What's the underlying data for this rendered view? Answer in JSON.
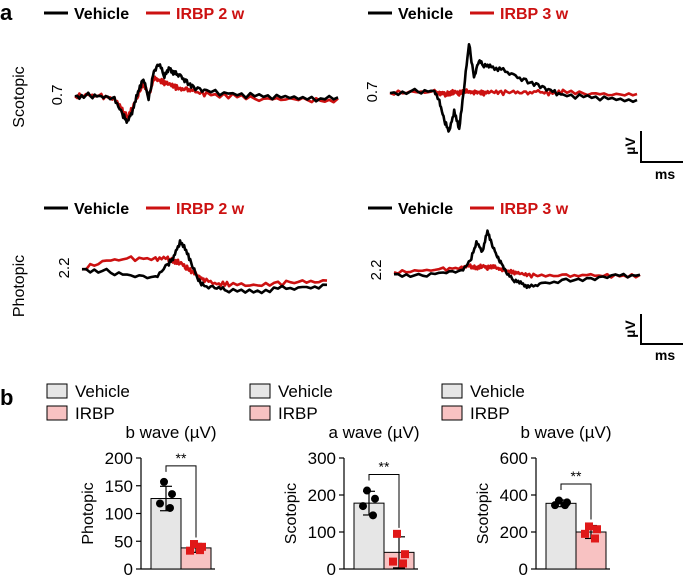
{
  "panel_a": {
    "label": "a",
    "row_labels": [
      "Scotopic",
      "Photopic"
    ],
    "scale_bar": {
      "y_label": "µV",
      "x_label": "ms"
    },
    "scale_values": {
      "scotopic": "0.7",
      "photopic": "2.2"
    },
    "colors": {
      "vehicle": "#000000",
      "irbp": "#cc1111"
    }
  },
  "panel_b": {
    "label": "b",
    "legend": {
      "vehicle": "Vehicle",
      "irbp": "IRBP"
    },
    "significance": "**",
    "colors": {
      "vehicle_bar": "#e6e6e6",
      "irbp_bar": "#f8c2c2",
      "vehicle_dot": "#000000",
      "irbp_dot": "#e01818"
    }
  },
  "chart_data": [
    {
      "type": "line",
      "panel": "a",
      "condition": "Scotopic",
      "legend": [
        "Vehicle",
        "IRBP 2 w"
      ],
      "scale": "0.7",
      "x": [
        0,
        10,
        20,
        30,
        36,
        40,
        44,
        48,
        52,
        56,
        60,
        64,
        68,
        72,
        76,
        80,
        85,
        90,
        100,
        120,
        140,
        160,
        180,
        200
      ],
      "series": [
        {
          "name": "Vehicle",
          "values": [
            0,
            0.05,
            0,
            -0.1,
            -0.8,
            -1.1,
            -0.6,
            0.2,
            0.8,
            -0.1,
            1.1,
            1.4,
            0.9,
            1.2,
            1.0,
            0.9,
            0.6,
            0.4,
            0.2,
            0.1,
            0,
            -0.05,
            -0.1,
            -0.1
          ]
        },
        {
          "name": "IRBP 2 w",
          "values": [
            0,
            0.05,
            0,
            -0.1,
            -0.6,
            -0.9,
            -0.5,
            0.1,
            0.6,
            0,
            0.8,
            0.7,
            0.6,
            0.5,
            0.4,
            0.3,
            0.3,
            0.2,
            0.1,
            0,
            -0.1,
            -0.1,
            -0.15,
            -0.15
          ]
        }
      ]
    },
    {
      "type": "line",
      "panel": "a",
      "condition": "Scotopic",
      "legend": [
        "Vehicle",
        "IRBP 3 w"
      ],
      "scale": "0.7",
      "x": [
        0,
        20,
        36,
        40,
        44,
        48,
        52,
        56,
        60,
        64,
        68,
        72,
        76,
        82,
        90,
        100,
        110,
        120,
        130,
        140,
        160,
        180,
        200
      ],
      "series": [
        {
          "name": "Vehicle",
          "values": [
            0,
            0.1,
            0.1,
            -0.4,
            -1.4,
            -1.9,
            -0.9,
            -1.8,
            0.3,
            2.5,
            0.8,
            1.6,
            1.4,
            1.3,
            1.2,
            0.9,
            0.6,
            0.4,
            0.1,
            -0.1,
            -0.2,
            -0.3,
            -0.4
          ]
        },
        {
          "name": "IRBP 3 w",
          "values": [
            0,
            0.05,
            0.05,
            0,
            -0.05,
            0,
            0.05,
            0,
            0.1,
            0.1,
            0.05,
            0.05,
            0,
            0.05,
            0,
            0.05,
            0,
            0.05,
            0,
            0.05,
            0,
            -0.05,
            -0.1
          ]
        }
      ]
    },
    {
      "type": "line",
      "panel": "a",
      "condition": "Photopic",
      "legend": [
        "Vehicle",
        "IRBP 2 w"
      ],
      "scale": "2.2",
      "x": [
        0,
        20,
        40,
        60,
        70,
        75,
        80,
        85,
        90,
        95,
        100,
        110,
        120,
        140,
        160,
        180,
        200
      ],
      "series": [
        {
          "name": "Vehicle",
          "values": [
            0,
            -0.1,
            -0.3,
            -0.4,
            0.2,
            0.6,
            1.3,
            0.9,
            0.2,
            -0.5,
            -0.8,
            -0.9,
            -1.0,
            -1.1,
            -0.9,
            -0.9,
            -0.8
          ]
        },
        {
          "name": "IRBP 2 w",
          "values": [
            0,
            0.4,
            0.5,
            0.5,
            0.5,
            0.4,
            0.3,
            0.1,
            -0.1,
            -0.3,
            -0.5,
            -0.7,
            -0.7,
            -0.8,
            -0.7,
            -0.6,
            -0.6
          ]
        }
      ]
    },
    {
      "type": "line",
      "panel": "a",
      "condition": "Photopic",
      "legend": [
        "Vehicle",
        "IRBP 3 w"
      ],
      "scale": "2.2",
      "x": [
        0,
        20,
        40,
        55,
        62,
        67,
        72,
        76,
        80,
        84,
        88,
        92,
        98,
        104,
        110,
        120,
        140,
        160,
        180,
        200
      ],
      "series": [
        {
          "name": "Vehicle",
          "values": [
            -0.2,
            -0.3,
            -0.1,
            0,
            0.6,
            1.8,
            1.2,
            2.5,
            1.6,
            0.9,
            0.4,
            -0.2,
            -0.6,
            -0.8,
            -1.0,
            -0.8,
            -0.6,
            -0.5,
            -0.3,
            -0.3
          ]
        },
        {
          "name": "IRBP 3 w",
          "values": [
            -0.1,
            0,
            0.1,
            0.2,
            0.3,
            0.2,
            0.3,
            0.2,
            0.3,
            0.2,
            0.1,
            0,
            -0.1,
            -0.2,
            -0.3,
            -0.3,
            -0.3,
            -0.3,
            -0.3,
            -0.3
          ]
        }
      ]
    },
    {
      "type": "bar",
      "panel": "b",
      "title": "b wave (µV)",
      "ylabel": "Photopic",
      "ylim": [
        0,
        200
      ],
      "yticks": [
        0,
        50,
        100,
        150,
        200
      ],
      "categories": [
        "Vehicle",
        "IRBP"
      ],
      "values": [
        127,
        38
      ],
      "errors": [
        22,
        8
      ],
      "points": [
        [
          157,
          135,
          118,
          110
        ],
        [
          45,
          40,
          33,
          34
        ]
      ],
      "significance": "**"
    },
    {
      "type": "bar",
      "panel": "b",
      "title": "a wave (µV)",
      "ylabel": "Scotopic",
      "ylim": [
        0,
        300
      ],
      "yticks": [
        0,
        100,
        200,
        300
      ],
      "categories": [
        "Vehicle",
        "IRBP"
      ],
      "values": [
        178,
        45
      ],
      "errors": [
        32,
        42
      ],
      "points": [
        [
          212,
          190,
          170,
          145
        ],
        [
          95,
          40,
          20,
          15
        ]
      ],
      "significance": "**"
    },
    {
      "type": "bar",
      "panel": "b",
      "title": "b wave (µV)",
      "ylabel": "Scotopic",
      "ylim": [
        0,
        600
      ],
      "yticks": [
        0,
        200,
        400,
        600
      ],
      "categories": [
        "Vehicle",
        "IRBP"
      ],
      "values": [
        355,
        200
      ],
      "errors": [
        18,
        35
      ],
      "points": [
        [
          370,
          360,
          345,
          345
        ],
        [
          230,
          215,
          190,
          165
        ]
      ],
      "significance": "**"
    }
  ]
}
